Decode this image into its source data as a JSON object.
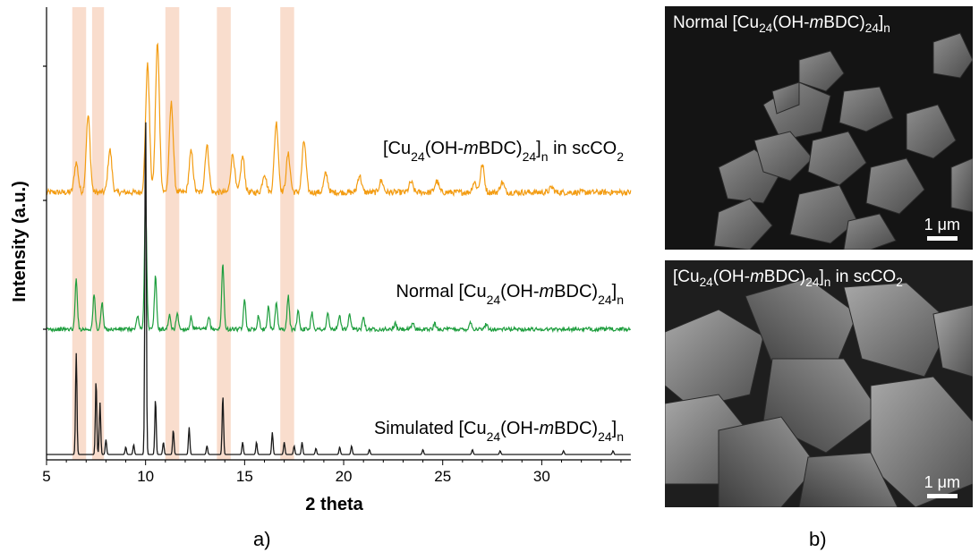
{
  "chart_data": [
    {
      "type": "line",
      "panel_label": "a)",
      "xlabel": "2 theta",
      "ylabel": "Intensity (a.u.)",
      "xlim": [
        5,
        34.5
      ],
      "xticks": [
        5,
        10,
        15,
        20,
        25,
        30
      ],
      "highlight_bands_2theta": [
        [
          6.3,
          7.0
        ],
        [
          7.3,
          7.9
        ],
        [
          11.0,
          11.7
        ],
        [
          13.6,
          14.3
        ],
        [
          16.8,
          17.5
        ]
      ],
      "band_color": "#f8d7c4",
      "series": [
        {
          "label_parts": [
            "[Cu",
            "24",
            "(OH-",
            "m",
            "BDC)",
            "24",
            "]",
            "n",
            " in scCO",
            "2"
          ],
          "color": "#f39c12",
          "peaks": [
            [
              6.5,
              0.35
            ],
            [
              7.1,
              0.9
            ],
            [
              8.2,
              0.5
            ],
            [
              10.1,
              1.5
            ],
            [
              10.6,
              1.75
            ],
            [
              11.3,
              1.05
            ],
            [
              12.3,
              0.48
            ],
            [
              13.1,
              0.55
            ],
            [
              14.4,
              0.45
            ],
            [
              14.9,
              0.42
            ],
            [
              16.0,
              0.22
            ],
            [
              16.6,
              0.82
            ],
            [
              17.2,
              0.45
            ],
            [
              18.0,
              0.6
            ],
            [
              19.1,
              0.22
            ],
            [
              20.8,
              0.2
            ],
            [
              21.9,
              0.14
            ],
            [
              23.4,
              0.12
            ],
            [
              24.7,
              0.13
            ],
            [
              26.6,
              0.12
            ],
            [
              27.0,
              0.32
            ],
            [
              28.0,
              0.12
            ],
            [
              30.5,
              0.06
            ]
          ]
        },
        {
          "label_parts": [
            "Normal [Cu",
            "24",
            "(OH-",
            "m",
            "BDC)",
            "24",
            "]",
            "n"
          ],
          "color": "#1e9e3e",
          "peaks": [
            [
              6.5,
              0.9
            ],
            [
              7.4,
              0.62
            ],
            [
              7.8,
              0.48
            ],
            [
              9.6,
              0.25
            ],
            [
              10.0,
              2.3
            ],
            [
              10.5,
              0.95
            ],
            [
              11.2,
              0.25
            ],
            [
              11.6,
              0.3
            ],
            [
              12.3,
              0.22
            ],
            [
              13.2,
              0.22
            ],
            [
              13.9,
              1.2
            ],
            [
              15.0,
              0.52
            ],
            [
              15.7,
              0.25
            ],
            [
              16.2,
              0.4
            ],
            [
              16.6,
              0.5
            ],
            [
              17.2,
              0.6
            ],
            [
              17.7,
              0.35
            ],
            [
              18.4,
              0.3
            ],
            [
              19.2,
              0.28
            ],
            [
              19.8,
              0.25
            ],
            [
              20.3,
              0.25
            ],
            [
              21.0,
              0.25
            ],
            [
              22.6,
              0.1
            ],
            [
              23.5,
              0.12
            ],
            [
              24.6,
              0.1
            ],
            [
              26.4,
              0.14
            ],
            [
              27.2,
              0.1
            ]
          ]
        },
        {
          "label_parts": [
            "Simulated [Cu",
            "24",
            "(OH-",
            "m",
            "BDC)",
            "24",
            "]",
            "n"
          ],
          "color": "#1a1a1a",
          "peaks": [
            [
              6.5,
              0.82
            ],
            [
              7.5,
              0.6
            ],
            [
              7.7,
              0.42
            ],
            [
              8.0,
              0.12
            ],
            [
              9.0,
              0.06
            ],
            [
              9.4,
              0.08
            ],
            [
              10.0,
              2.8
            ],
            [
              10.5,
              0.45
            ],
            [
              10.9,
              0.1
            ],
            [
              11.4,
              0.2
            ],
            [
              12.2,
              0.22
            ],
            [
              13.1,
              0.07
            ],
            [
              13.9,
              0.48
            ],
            [
              14.9,
              0.1
            ],
            [
              15.6,
              0.1
            ],
            [
              16.4,
              0.18
            ],
            [
              17.0,
              0.1
            ],
            [
              17.5,
              0.07
            ],
            [
              17.9,
              0.1
            ],
            [
              18.6,
              0.05
            ],
            [
              19.8,
              0.06
            ],
            [
              20.4,
              0.07
            ],
            [
              21.3,
              0.04
            ],
            [
              24.0,
              0.04
            ],
            [
              26.5,
              0.04
            ],
            [
              27.9,
              0.03
            ],
            [
              31.1,
              0.03
            ],
            [
              33.6,
              0.03
            ]
          ]
        }
      ]
    }
  ],
  "sem_images": {
    "panel_label": "b)",
    "top": {
      "title_parts": [
        "Normal [Cu",
        "24",
        "(OH-",
        "m",
        "BDC)",
        "24",
        "]",
        "n"
      ],
      "scale_bar": "1 μm"
    },
    "bottom": {
      "title_parts": [
        "[Cu",
        "24",
        "(OH-",
        "m",
        "BDC)",
        "24",
        "]",
        "n",
        " in scCO",
        "2"
      ],
      "scale_bar": "1 μm"
    }
  }
}
